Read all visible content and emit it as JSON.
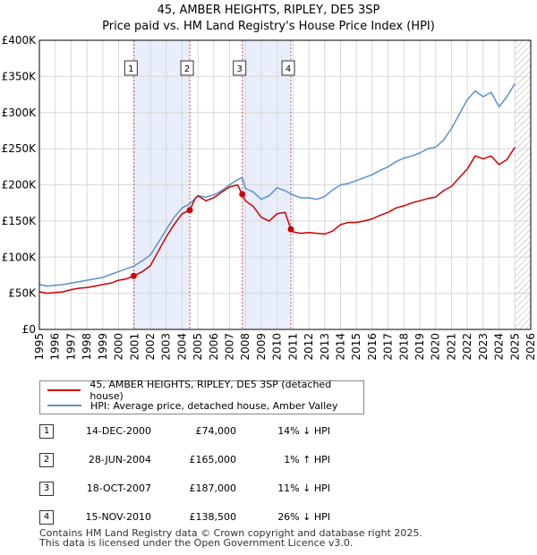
{
  "header": {
    "title": "45, AMBER HEIGHTS, RIPLEY, DE5 3SP",
    "subtitle": "Price paid vs. HM Land Registry's House Price Index (HPI)"
  },
  "legend": {
    "property_label": "45, AMBER HEIGHTS, RIPLEY, DE5 3SP (detached house)",
    "hpi_label": "HPI: Average price, detached house, Amber Valley"
  },
  "sales": [
    {
      "num": "1",
      "date": "14-DEC-2000",
      "price": "£74,000",
      "rel": "14% ↓ HPI"
    },
    {
      "num": "2",
      "date": "28-JUN-2004",
      "price": "£165,000",
      "rel": "1% ↑ HPI"
    },
    {
      "num": "3",
      "date": "18-OCT-2007",
      "price": "£187,000",
      "rel": "11% ↓ HPI"
    },
    {
      "num": "4",
      "date": "15-NOV-2010",
      "price": "£138,500",
      "rel": "26% ↓ HPI"
    }
  ],
  "footer": {
    "line1": "Contains HM Land Registry data © Crown copyright and database right 2025.",
    "line2": "This data is licensed under the Open Government Licence v3.0."
  },
  "colors": {
    "property": "#cc0000",
    "hpi": "#5b8fd0",
    "shade": "#e8eefb",
    "grid": "#d8d8d8",
    "marker_line": "#e05050"
  },
  "chart_data": {
    "type": "line",
    "title": "45, AMBER HEIGHTS, RIPLEY, DE5 3SP",
    "subtitle": "Price paid vs. HM Land Registry's House Price Index (HPI)",
    "xlabel": "",
    "ylabel": "",
    "xlim": [
      1995,
      2026
    ],
    "ylim": [
      0,
      400000
    ],
    "y_ticks": [
      0,
      50000,
      100000,
      150000,
      200000,
      250000,
      300000,
      350000,
      400000
    ],
    "y_tick_labels": [
      "£0",
      "£50K",
      "£100K",
      "£150K",
      "£200K",
      "£250K",
      "£300K",
      "£350K",
      "£400K"
    ],
    "x_ticks": [
      1995,
      1996,
      1997,
      1998,
      1999,
      2000,
      2001,
      2002,
      2003,
      2004,
      2005,
      2006,
      2007,
      2008,
      2009,
      2010,
      2011,
      2012,
      2013,
      2014,
      2015,
      2016,
      2017,
      2018,
      2019,
      2020,
      2021,
      2022,
      2023,
      2024,
      2025,
      2026
    ],
    "x_tick_labels": [
      "1995",
      "1996",
      "1997",
      "1998",
      "1999",
      "2000",
      "2001",
      "2002",
      "2003",
      "2004",
      "2005",
      "2006",
      "2007",
      "2008",
      "2009",
      "2010",
      "2011",
      "2012",
      "2013",
      "2014",
      "2015",
      "2016",
      "2017",
      "2018",
      "2019",
      "2020",
      "2021",
      "2022",
      "2023",
      "2024",
      "2025",
      "2026"
    ],
    "grid": true,
    "shaded_ranges": [
      [
        2000.95,
        2004.49
      ],
      [
        2007.8,
        2010.87
      ]
    ],
    "hatched_from": 2025.0,
    "series": [
      {
        "name": "45, AMBER HEIGHTS, RIPLEY, DE5 3SP (detached house)",
        "x": [
          1995.0,
          1995.5,
          1996.0,
          1996.5,
          1997.0,
          1997.5,
          1998.0,
          1998.5,
          1999.0,
          1999.5,
          2000.0,
          2000.5,
          2000.95,
          2001.5,
          2002.0,
          2002.5,
          2003.0,
          2003.5,
          2004.0,
          2004.49,
          2004.8,
          2005.0,
          2005.5,
          2006.0,
          2006.5,
          2007.0,
          2007.5,
          2007.8,
          2008.0,
          2008.5,
          2009.0,
          2009.5,
          2010.0,
          2010.5,
          2010.87,
          2011.0,
          2011.5,
          2012.0,
          2012.5,
          2013.0,
          2013.5,
          2014.0,
          2014.5,
          2015.0,
          2015.5,
          2016.0,
          2016.5,
          2017.0,
          2017.5,
          2018.0,
          2018.5,
          2019.0,
          2019.5,
          2020.0,
          2020.5,
          2021.0,
          2021.5,
          2022.0,
          2022.5,
          2023.0,
          2023.5,
          2024.0,
          2024.5,
          2025.0
        ],
        "values": [
          52000,
          50000,
          51000,
          52000,
          55000,
          57000,
          58000,
          60000,
          62000,
          64000,
          68000,
          70000,
          74000,
          80000,
          88000,
          108000,
          128000,
          145000,
          160000,
          165000,
          180000,
          185000,
          178000,
          182000,
          190000,
          197000,
          200000,
          187000,
          178000,
          170000,
          155000,
          150000,
          160000,
          162000,
          138500,
          135000,
          133000,
          134000,
          133000,
          132000,
          136000,
          145000,
          148000,
          148000,
          150000,
          153000,
          158000,
          162000,
          168000,
          171000,
          175000,
          178000,
          181000,
          183000,
          192000,
          198000,
          210000,
          222000,
          240000,
          236000,
          240000,
          228000,
          235000,
          252000
        ]
      },
      {
        "name": "HPI: Average price, detached house, Amber Valley",
        "x": [
          1995.0,
          1995.5,
          1996.0,
          1996.5,
          1997.0,
          1997.5,
          1998.0,
          1998.5,
          1999.0,
          1999.5,
          2000.0,
          2000.5,
          2001.0,
          2001.5,
          2002.0,
          2002.5,
          2003.0,
          2003.5,
          2004.0,
          2004.5,
          2005.0,
          2005.5,
          2006.0,
          2006.5,
          2007.0,
          2007.5,
          2007.8,
          2008.0,
          2008.5,
          2009.0,
          2009.5,
          2010.0,
          2010.5,
          2011.0,
          2011.5,
          2012.0,
          2012.5,
          2013.0,
          2013.5,
          2014.0,
          2014.5,
          2015.0,
          2015.5,
          2016.0,
          2016.5,
          2017.0,
          2017.5,
          2018.0,
          2018.5,
          2019.0,
          2019.5,
          2020.0,
          2020.5,
          2021.0,
          2021.5,
          2022.0,
          2022.5,
          2023.0,
          2023.5,
          2024.0,
          2024.5,
          2025.0
        ],
        "values": [
          62000,
          60000,
          61000,
          62000,
          64000,
          66000,
          68000,
          70000,
          72000,
          76000,
          80000,
          84000,
          88000,
          95000,
          103000,
          120000,
          138000,
          155000,
          168000,
          174000,
          185000,
          183000,
          186000,
          192000,
          200000,
          207000,
          210000,
          195000,
          190000,
          180000,
          185000,
          196000,
          192000,
          186000,
          182000,
          182000,
          180000,
          184000,
          193000,
          200000,
          202000,
          206000,
          210000,
          214000,
          220000,
          225000,
          232000,
          237000,
          240000,
          244000,
          250000,
          252000,
          262000,
          278000,
          298000,
          318000,
          330000,
          322000,
          328000,
          308000,
          322000,
          340000
        ]
      }
    ],
    "sale_points": [
      {
        "label": "1",
        "x": 2000.95,
        "y": 74000
      },
      {
        "label": "2",
        "x": 2004.49,
        "y": 165000
      },
      {
        "label": "3",
        "x": 2007.8,
        "y": 187000
      },
      {
        "label": "4",
        "x": 2010.87,
        "y": 138500
      }
    ]
  }
}
